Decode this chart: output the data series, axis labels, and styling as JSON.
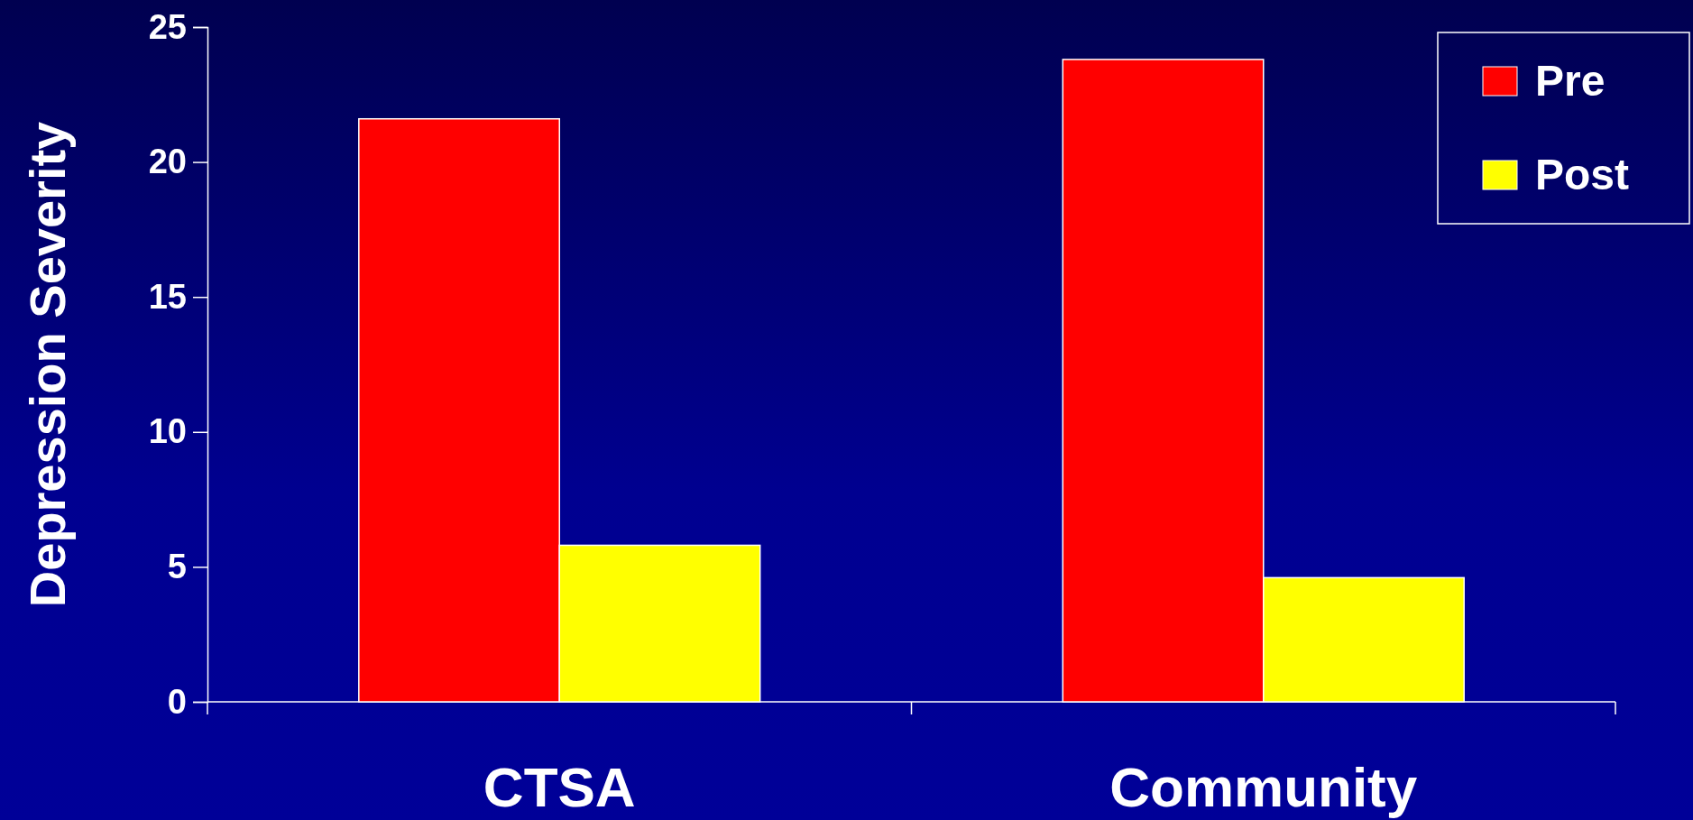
{
  "chart_data": {
    "type": "bar",
    "ylabel": "Depression Severity",
    "categories": [
      "CTSA",
      "Community"
    ],
    "series": [
      {
        "name": "Pre",
        "color": "#ff0000",
        "values": [
          21.6,
          23.8
        ]
      },
      {
        "name": "Post",
        "color": "#ffff00",
        "values": [
          5.8,
          4.6
        ]
      }
    ],
    "ylim": [
      0,
      25
    ],
    "yticks": [
      0,
      5,
      10,
      15,
      20,
      25
    ],
    "legend": "top right"
  }
}
